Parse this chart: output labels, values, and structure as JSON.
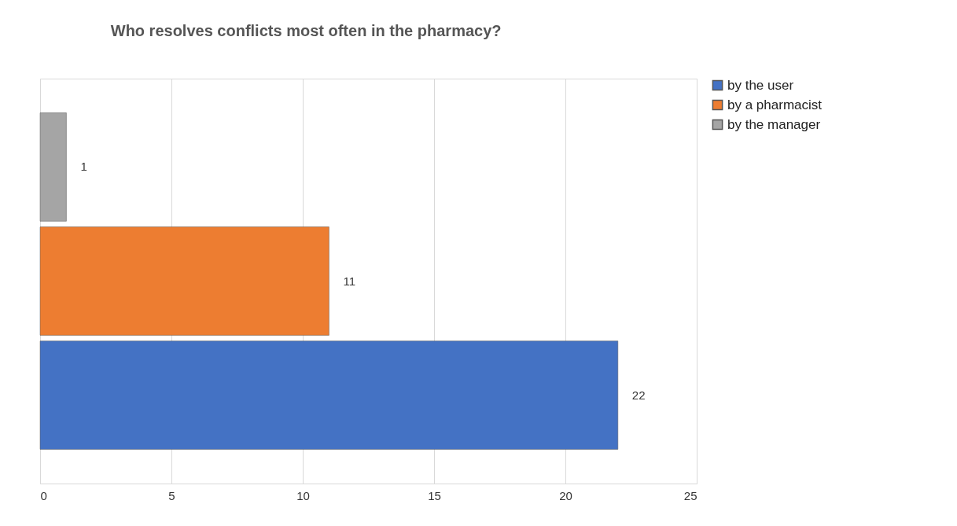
{
  "chart_data": {
    "type": "bar",
    "orientation": "horizontal",
    "title": "Who resolves conflicts most often in the pharmacy?",
    "categories": [
      null
    ],
    "series": [
      {
        "name": "by the user",
        "color": "#4472c4",
        "values": [
          22
        ]
      },
      {
        "name": "by a pharmacist",
        "color": "#ed7d31",
        "values": [
          11
        ]
      },
      {
        "name": "by the manager",
        "color": "#a5a5a5",
        "values": [
          1
        ]
      }
    ],
    "xlim": [
      0,
      25
    ],
    "xticks": [
      0,
      5,
      10,
      15,
      20,
      25
    ],
    "grid": "x",
    "legend": "right",
    "data_labels": true
  }
}
